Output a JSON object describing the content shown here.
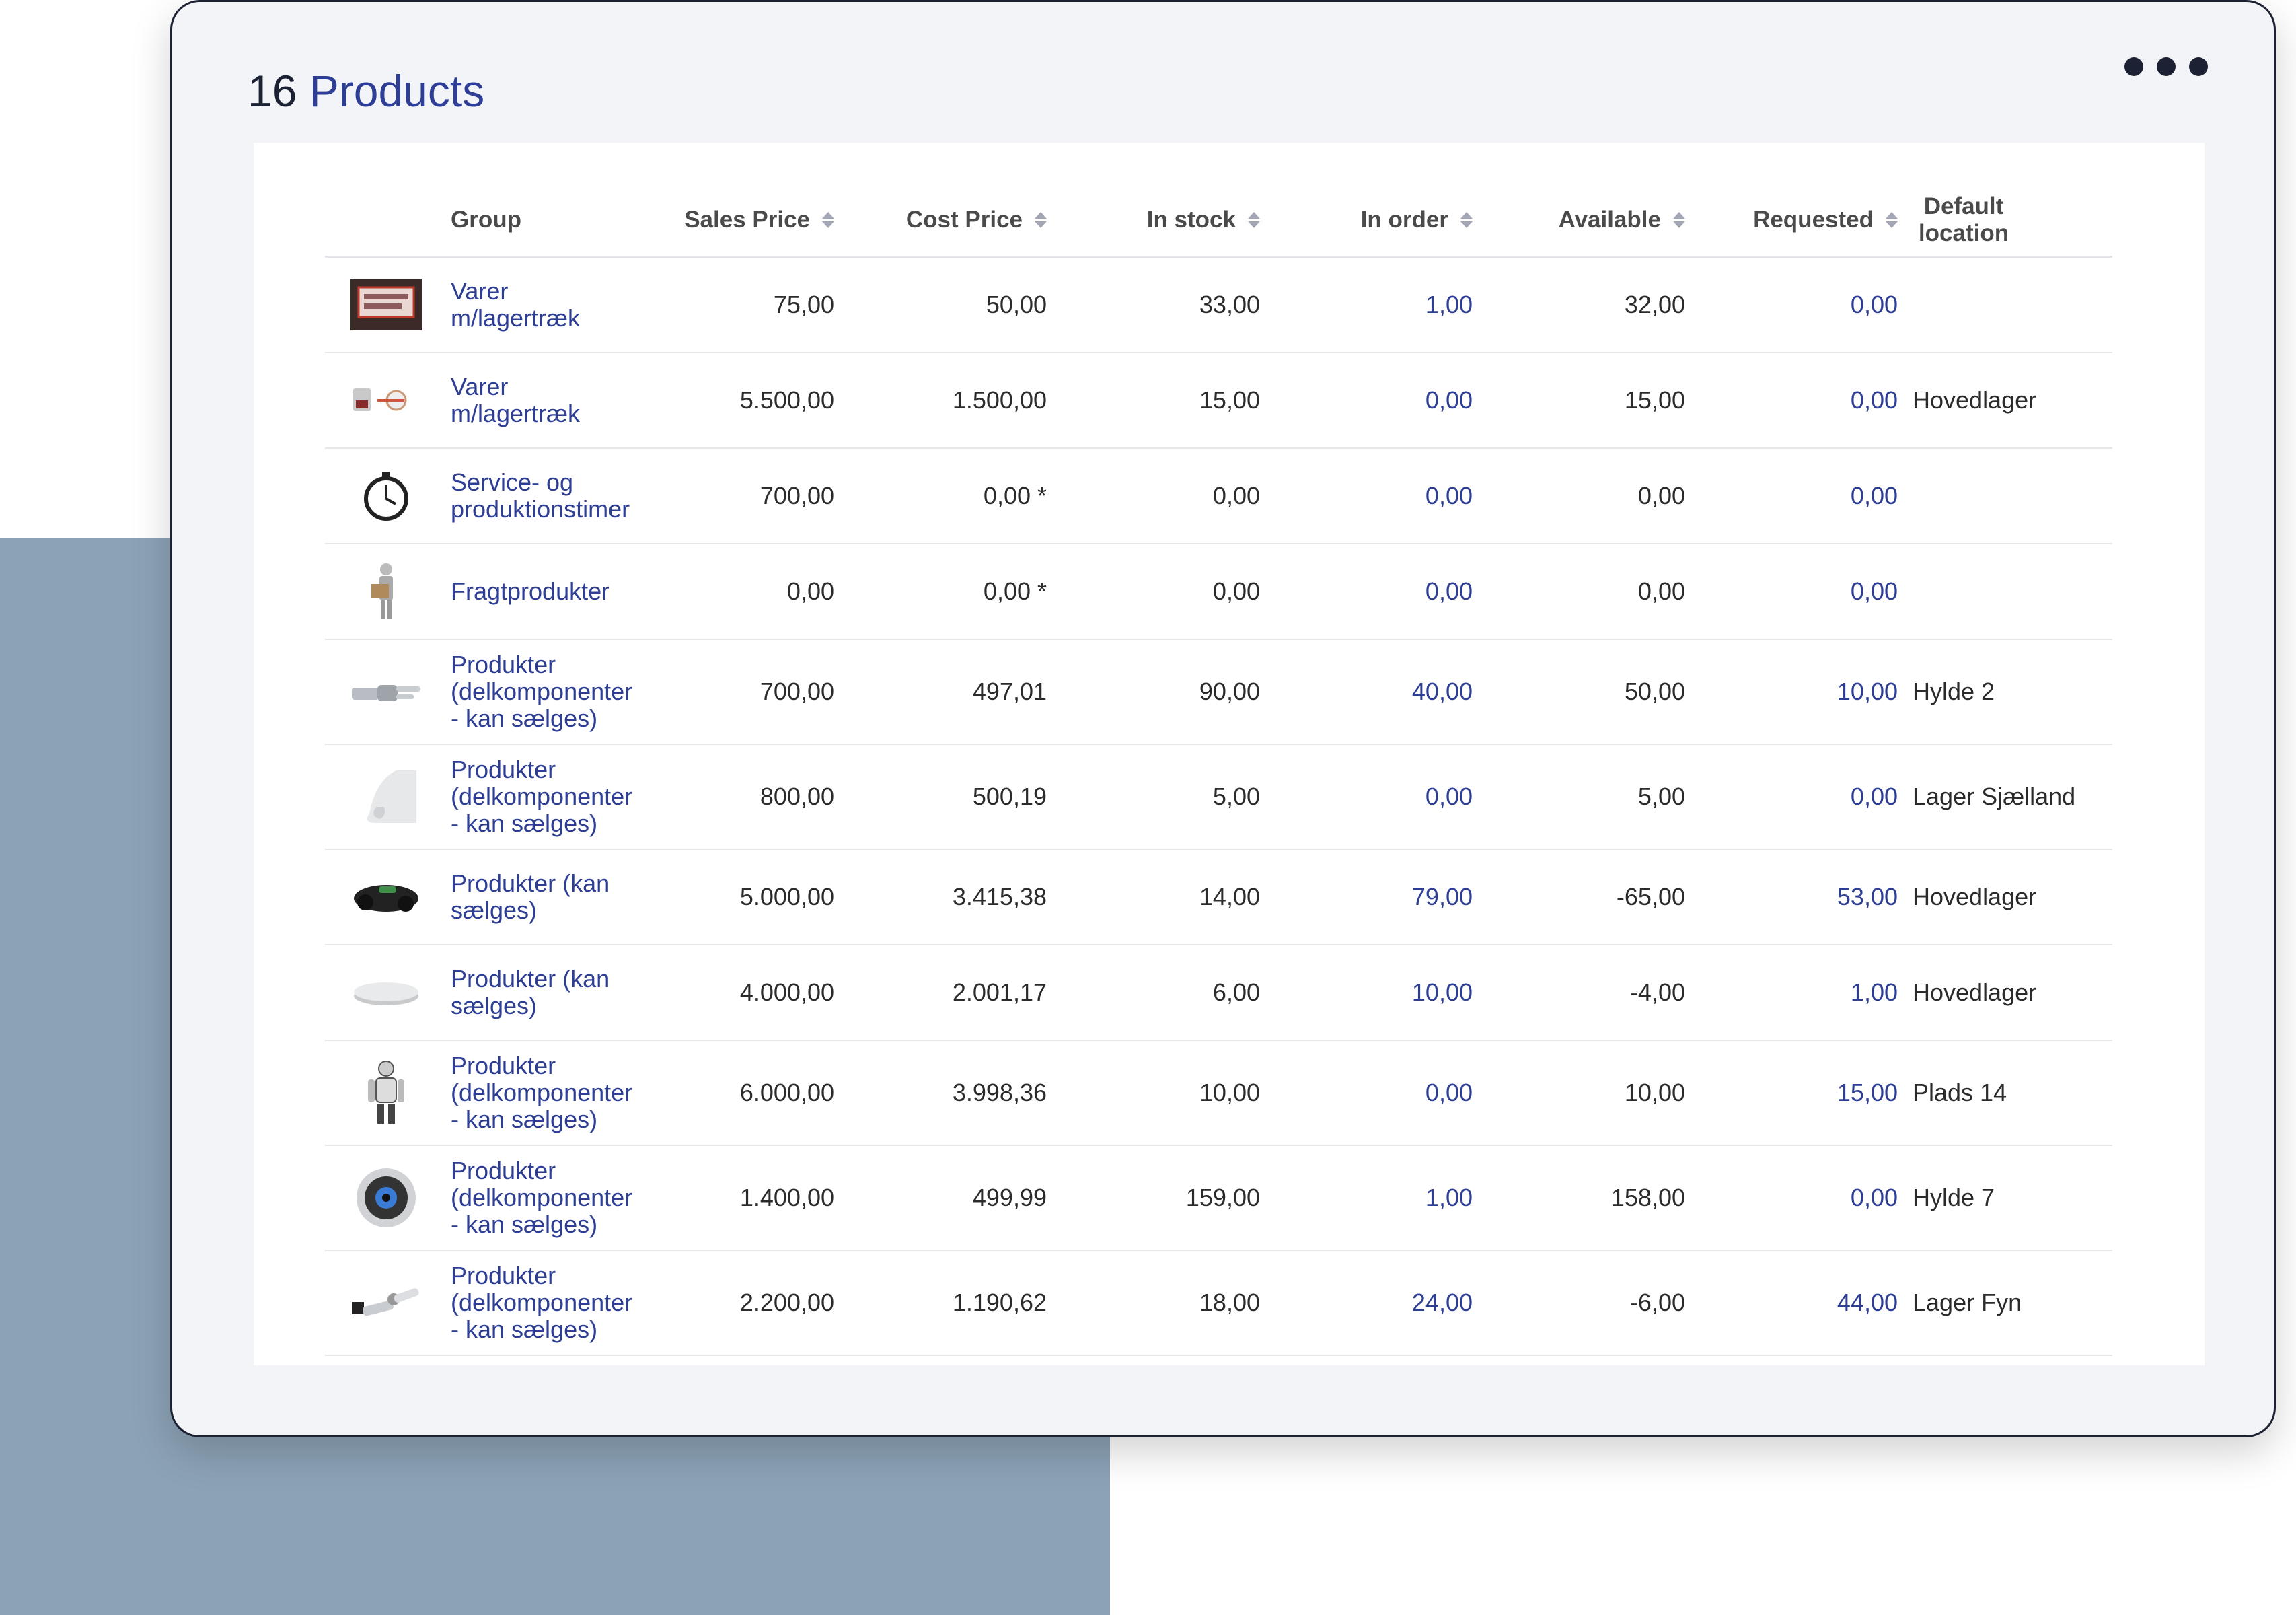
{
  "header": {
    "count": "16",
    "title_word": "Products"
  },
  "columns": {
    "group": "Group",
    "sales_price": "Sales Price",
    "cost_price": "Cost Price",
    "in_stock": "In stock",
    "in_order": "In order",
    "available": "Available",
    "requested": "Requested",
    "default_location": "Default location"
  },
  "rows": [
    {
      "icon": "price-tag-image",
      "group": "Varer m/lagertræk",
      "sales": "75,00",
      "cost": "50,00",
      "stock": "33,00",
      "order": "1,00",
      "available": "32,00",
      "requested": "0,00",
      "location": ""
    },
    {
      "icon": "device-image",
      "group": "Varer m/lagertræk",
      "sales": "5.500,00",
      "cost": "1.500,00",
      "stock": "15,00",
      "order": "0,00",
      "available": "15,00",
      "requested": "0,00",
      "location": "Hovedlager"
    },
    {
      "icon": "stopwatch-icon",
      "group": "Service- og produktionstimer",
      "sales": "700,00",
      "cost": "0,00 *",
      "stock": "0,00",
      "order": "0,00",
      "available": "0,00",
      "requested": "0,00",
      "location": ""
    },
    {
      "icon": "courier-figure-image",
      "group": "Fragtprodukter",
      "sales": "0,00",
      "cost": "0,00 *",
      "stock": "0,00",
      "order": "0,00",
      "available": "0,00",
      "requested": "0,00",
      "location": ""
    },
    {
      "icon": "robot-hand-image",
      "group": "Produkter (delkomponenter - kan sælges)",
      "sales": "700,00",
      "cost": "497,01",
      "stock": "90,00",
      "order": "40,00",
      "available": "50,00",
      "requested": "10,00",
      "location": "Hylde 2"
    },
    {
      "icon": "robot-nose-image",
      "group": "Produkter (delkomponenter - kan sælges)",
      "sales": "800,00",
      "cost": "500,19",
      "stock": "5,00",
      "order": "0,00",
      "available": "5,00",
      "requested": "0,00",
      "location": "Lager Sjælland"
    },
    {
      "icon": "robot-mower-image",
      "group": "Produkter (kan sælges)",
      "sales": "5.000,00",
      "cost": "3.415,38",
      "stock": "14,00",
      "order": "79,00",
      "available": "-65,00",
      "requested": "53,00",
      "location": "Hovedlager"
    },
    {
      "icon": "disc-image",
      "group": "Produkter (kan sælges)",
      "sales": "4.000,00",
      "cost": "2.001,17",
      "stock": "6,00",
      "order": "10,00",
      "available": "-4,00",
      "requested": "1,00",
      "location": "Hovedlager"
    },
    {
      "icon": "robot-figure-image",
      "group": "Produkter (delkomponenter - kan sælges)",
      "sales": "6.000,00",
      "cost": "3.998,36",
      "stock": "10,00",
      "order": "0,00",
      "available": "10,00",
      "requested": "15,00",
      "location": "Plads 14"
    },
    {
      "icon": "robot-eye-image",
      "group": "Produkter (delkomponenter - kan sælges)",
      "sales": "1.400,00",
      "cost": "499,99",
      "stock": "159,00",
      "order": "1,00",
      "available": "158,00",
      "requested": "0,00",
      "location": "Hylde 7"
    },
    {
      "icon": "robot-arm-image",
      "group": "Produkter (delkomponenter - kan sælges)",
      "sales": "2.200,00",
      "cost": "1.190,62",
      "stock": "18,00",
      "order": "24,00",
      "available": "-6,00",
      "requested": "44,00",
      "location": "Lager Fyn"
    }
  ],
  "colors": {
    "accent": "#2d3e94",
    "text": "#2b2b2b",
    "background_block": "#8ca2b6",
    "card": "#f3f4f8"
  }
}
